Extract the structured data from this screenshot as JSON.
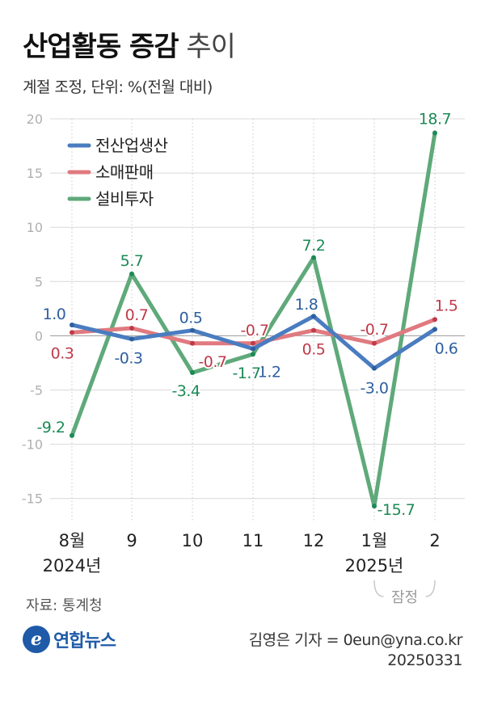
{
  "title": {
    "main": "산업활동 증감",
    "sub": "추이"
  },
  "subtitle": "계절 조정, 단위: %(전월 대비)",
  "source": "자료: 통계청",
  "logo_text": "연합뉴스",
  "logo_glyph": "e",
  "credit": {
    "reporter": "김영은 기자 = 0eun@yna.co.kr",
    "date": "20250331"
  },
  "chart_data": {
    "type": "line",
    "categories": [
      "8월",
      "9",
      "10",
      "11",
      "12",
      "1월",
      "2"
    ],
    "year_labels": {
      "0": "2024년",
      "5": "2025년"
    },
    "preliminary_label": "잠정",
    "ylim": [
      -17,
      20
    ],
    "yticks": [
      20,
      15,
      10,
      5,
      0,
      -5,
      -10,
      -15
    ],
    "grid": true,
    "legend_position": "top-left",
    "series": [
      {
        "name": "전산업생산",
        "color": "#4a7cc0",
        "label_color": "#2e5f9e",
        "values": [
          1.0,
          -0.3,
          0.5,
          -1.2,
          1.8,
          -3.0,
          0.6
        ],
        "labels": [
          "1.0",
          "-0.3",
          "0.5",
          "-1.2",
          "1.8",
          "-3.0",
          "0.6"
        ]
      },
      {
        "name": "소매판매",
        "color": "#e07a80",
        "label_color": "#c03a4a",
        "values": [
          0.3,
          0.7,
          -0.7,
          -0.7,
          0.5,
          -0.7,
          1.5
        ],
        "labels": [
          "0.3",
          "0.7",
          "-0.7",
          "-0.7",
          "0.5",
          "-0.7",
          "1.5"
        ]
      },
      {
        "name": "설비투자",
        "color": "#5fa97a",
        "label_color": "#1c8a55",
        "values": [
          -9.2,
          5.7,
          -3.4,
          -1.7,
          7.2,
          -15.7,
          18.7
        ],
        "labels": [
          "-9.2",
          "5.7",
          "-3.4",
          "-1.7",
          "7.2",
          "-15.7",
          "18.7"
        ]
      }
    ]
  }
}
